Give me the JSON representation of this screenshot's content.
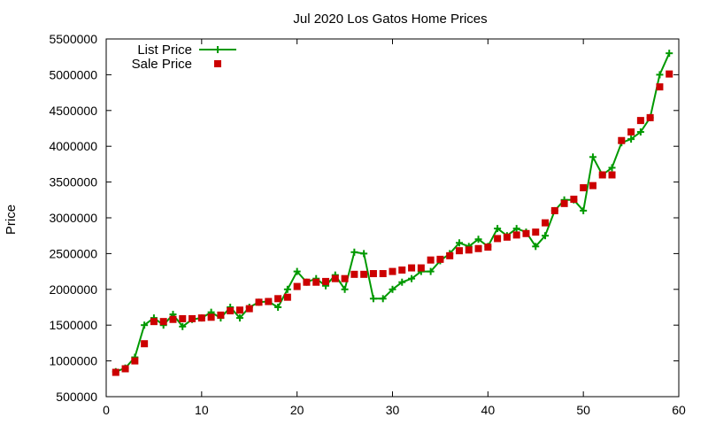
{
  "chart_data": {
    "type": "line",
    "title": "Jul 2020 Los Gatos Home Prices",
    "xlabel": "",
    "ylabel": "Price",
    "xlim": [
      0,
      60
    ],
    "ylim": [
      500000,
      5500000
    ],
    "x_ticks": [
      0,
      10,
      20,
      30,
      40,
      50,
      60
    ],
    "y_ticks": [
      500000,
      1000000,
      1500000,
      2000000,
      2500000,
      3000000,
      3500000,
      4000000,
      4500000,
      5000000,
      5500000
    ],
    "x_tick_labels": [
      "0",
      "10",
      "20",
      "30",
      "40",
      "50",
      "60"
    ],
    "y_tick_labels": [
      "500000",
      "1000000",
      "1500000",
      "2000000",
      "2500000",
      "3000000",
      "3500000",
      "4000000",
      "4500000",
      "5000000",
      "5500000"
    ],
    "grid": false,
    "legend_position": "top-left",
    "x": [
      1,
      2,
      3,
      4,
      5,
      6,
      7,
      8,
      9,
      10,
      11,
      12,
      13,
      14,
      15,
      16,
      17,
      18,
      19,
      20,
      21,
      22,
      23,
      24,
      25,
      26,
      27,
      28,
      29,
      30,
      31,
      32,
      33,
      34,
      35,
      36,
      37,
      38,
      39,
      40,
      41,
      42,
      43,
      44,
      45,
      46,
      47,
      48,
      49,
      50,
      51,
      52,
      53,
      54,
      55,
      56,
      57,
      58,
      59
    ],
    "series": [
      {
        "name": "List Price",
        "style": "line-plus",
        "color": "#009900",
        "values": [
          850000,
          900000,
          1050000,
          1500000,
          1600000,
          1500000,
          1650000,
          1480000,
          1580000,
          1600000,
          1680000,
          1600000,
          1750000,
          1600000,
          1750000,
          1820000,
          1830000,
          1750000,
          2000000,
          2250000,
          2100000,
          2150000,
          2050000,
          2200000,
          2000000,
          2520000,
          2500000,
          1870000,
          1870000,
          2000000,
          2100000,
          2150000,
          2250000,
          2250000,
          2400000,
          2500000,
          2650000,
          2600000,
          2700000,
          2600000,
          2850000,
          2750000,
          2850000,
          2800000,
          2600000,
          2750000,
          3100000,
          3250000,
          3250000,
          3100000,
          3850000,
          3600000,
          3700000,
          4050000,
          4100000,
          4200000,
          4400000,
          5000000,
          5300000
        ]
      },
      {
        "name": "Sale Price",
        "style": "square",
        "color": "#cc0000",
        "values": [
          840000,
          890000,
          1000000,
          1240000,
          1550000,
          1550000,
          1580000,
          1590000,
          1590000,
          1600000,
          1610000,
          1640000,
          1700000,
          1710000,
          1730000,
          1820000,
          1830000,
          1870000,
          1890000,
          2040000,
          2100000,
          2100000,
          2110000,
          2150000,
          2150000,
          2210000,
          2210000,
          2220000,
          2220000,
          2250000,
          2270000,
          2300000,
          2300000,
          2410000,
          2420000,
          2470000,
          2540000,
          2550000,
          2570000,
          2590000,
          2710000,
          2730000,
          2760000,
          2780000,
          2800000,
          2930000,
          3100000,
          3200000,
          3260000,
          3420000,
          3450000,
          3600000,
          3600000,
          4080000,
          4200000,
          4360000,
          4400000,
          4830000,
          5010000
        ]
      }
    ]
  }
}
